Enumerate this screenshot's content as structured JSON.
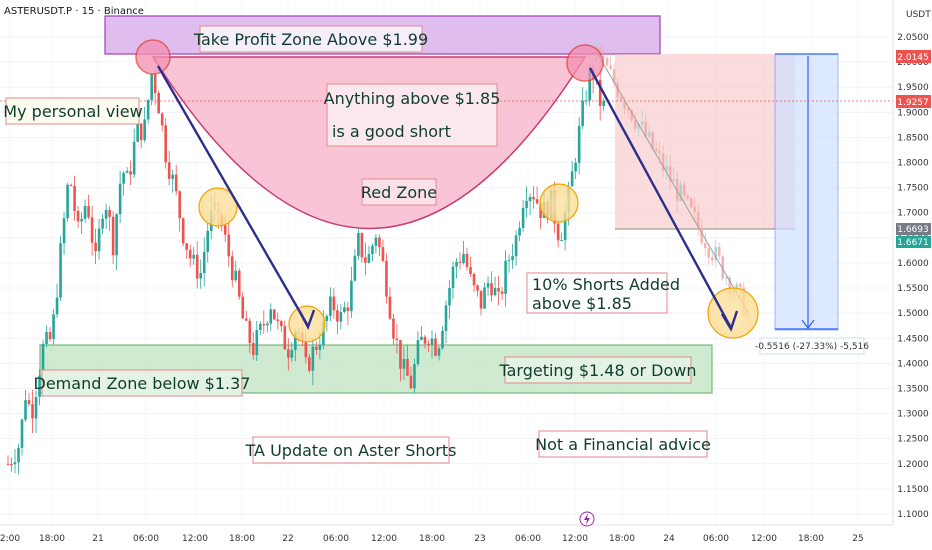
{
  "header": {
    "symbol_line": "ASTERUSDT.P · 15 · Binance",
    "currency": "USDT"
  },
  "annotations": {
    "take_profit": "Take Profit Zone Above $1.99",
    "personal_view": "My personal view",
    "anything_above_1": "Anything above $1.85",
    "anything_above_2": "is a good short",
    "red_zone": "Red Zone",
    "shorts_added_1": "10% Shorts Added",
    "shorts_added_2": "above $1.85",
    "targeting": "Targeting $1.48 or Down",
    "demand_zone": "Demand Zone below $1.37",
    "ta_update": "TA Update on Aster Shorts",
    "not_advice": "Not a Financial advice",
    "measure_label": "-0.5516 (-27.33%) -5,516"
  },
  "price_tags": {
    "top": "2.0145",
    "current": "1.9257",
    "level_a": "1.6693",
    "level_b": "1.6671"
  },
  "colors": {
    "up": "#26a69a",
    "down": "#ef5350",
    "zone_purple": "#d9b3ec",
    "zone_green": "#c8e6c9",
    "arrow": "#2b2e8c"
  },
  "chart_data": {
    "type": "candlestick",
    "y_ticks": [
      2.05,
      2.0,
      1.95,
      1.9,
      1.85,
      1.8,
      1.75,
      1.7,
      1.65,
      1.6,
      1.55,
      1.5,
      1.45,
      1.4,
      1.35,
      1.3,
      1.25,
      1.2,
      1.15,
      1.1
    ],
    "y_tick_labels": [
      "2.0500",
      "2.0000",
      "1.9500",
      "1.9000",
      "1.8500",
      "1.8000",
      "1.7500",
      "1.7000",
      "1.6500",
      "1.6000",
      "1.5500",
      "1.5000",
      "1.4500",
      "1.4000",
      "1.3500",
      "1.3000",
      "1.2500",
      "1.2000",
      "1.1500",
      "1.1000"
    ],
    "ylim": [
      1.085,
      2.085
    ],
    "x_tick_labels": [
      "2:00",
      "18:00",
      "21",
      "06:00",
      "12:00",
      "18:00",
      "22",
      "06:00",
      "12:00",
      "18:00",
      "23",
      "06:00",
      "12:00",
      "18:00",
      "24",
      "06:00",
      "12:00",
      "18:00",
      "25"
    ],
    "price_path": [
      [
        0,
        1.2
      ],
      [
        0.4,
        1.24
      ],
      [
        0.6,
        1.34
      ],
      [
        0.8,
        1.3
      ],
      [
        1.2,
        1.43
      ],
      [
        1.5,
        1.45
      ],
      [
        1.8,
        1.62
      ],
      [
        2.1,
        1.78
      ],
      [
        2.4,
        1.66
      ],
      [
        2.7,
        1.73
      ],
      [
        3.0,
        1.6
      ],
      [
        3.3,
        1.74
      ],
      [
        3.6,
        1.64
      ],
      [
        3.9,
        1.79
      ],
      [
        4.1,
        1.76
      ],
      [
        4.4,
        1.86
      ],
      [
        4.7,
        1.87
      ],
      [
        4.9,
        1.98
      ],
      [
        5.1,
        1.94
      ],
      [
        5.4,
        1.82
      ],
      [
        5.7,
        1.75
      ],
      [
        6.0,
        1.66
      ],
      [
        6.3,
        1.6
      ],
      [
        6.6,
        1.58
      ],
      [
        6.9,
        1.69
      ],
      [
        7.2,
        1.7
      ],
      [
        7.5,
        1.63
      ],
      [
        7.8,
        1.56
      ],
      [
        8.1,
        1.47
      ],
      [
        8.4,
        1.43
      ],
      [
        8.7,
        1.47
      ],
      [
        9.0,
        1.52
      ],
      [
        9.3,
        1.46
      ],
      [
        9.6,
        1.43
      ],
      [
        9.9,
        1.48
      ],
      [
        10.2,
        1.39
      ],
      [
        10.5,
        1.43
      ],
      [
        10.8,
        1.47
      ],
      [
        11.1,
        1.52
      ],
      [
        11.4,
        1.49
      ],
      [
        11.7,
        1.53
      ],
      [
        12.0,
        1.64
      ],
      [
        12.3,
        1.6
      ],
      [
        12.6,
        1.66
      ],
      [
        12.9,
        1.58
      ],
      [
        13.2,
        1.47
      ],
      [
        13.5,
        1.39
      ],
      [
        13.8,
        1.36
      ],
      [
        14.1,
        1.44
      ],
      [
        14.4,
        1.46
      ],
      [
        14.7,
        1.43
      ],
      [
        15.0,
        1.52
      ],
      [
        15.3,
        1.6
      ],
      [
        15.6,
        1.62
      ],
      [
        15.9,
        1.55
      ],
      [
        16.2,
        1.52
      ],
      [
        16.5,
        1.57
      ],
      [
        16.8,
        1.52
      ],
      [
        17.1,
        1.6
      ],
      [
        17.4,
        1.65
      ],
      [
        17.7,
        1.75
      ],
      [
        18.0,
        1.74
      ],
      [
        18.3,
        1.7
      ],
      [
        18.6,
        1.72
      ],
      [
        18.9,
        1.65
      ],
      [
        19.2,
        1.73
      ],
      [
        19.5,
        1.84
      ],
      [
        19.8,
        1.94
      ],
      [
        20.0,
        1.99
      ],
      [
        20.2,
        1.93
      ],
      [
        20.5,
        1.9
      ]
    ],
    "projection_start": [
      20.5,
      2.02
    ],
    "projection_end": [
      25.7,
      1.5
    ]
  }
}
